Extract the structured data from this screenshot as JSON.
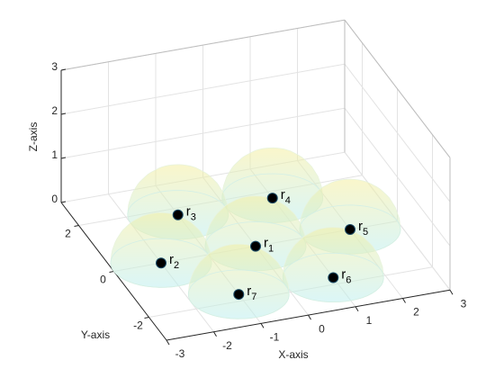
{
  "chart_data": {
    "type": "scatter3d",
    "xlabel": "X-axis",
    "ylabel": "Y-axis",
    "zlabel": "Z-axis",
    "xlim": [
      -3,
      3
    ],
    "ylim": [
      -3,
      3
    ],
    "zlim": [
      0,
      3
    ],
    "xticks": [
      -3,
      -2,
      -1,
      0,
      1,
      2,
      3
    ],
    "yticks": [
      -2,
      0,
      2
    ],
    "zticks": [
      0,
      1,
      2,
      3
    ],
    "grid": true,
    "x": [
      0,
      -2,
      -1,
      1,
      2,
      1,
      -1
    ],
    "y": [
      0,
      0,
      1.732,
      1.732,
      0,
      -1.732,
      -1.732
    ],
    "z": [
      0,
      0,
      0,
      0,
      0,
      0,
      0
    ],
    "point_labels": [
      {
        "text": "r",
        "sub": "1"
      },
      {
        "text": "r",
        "sub": "2"
      },
      {
        "text": "r",
        "sub": "3"
      },
      {
        "text": "r",
        "sub": "4"
      },
      {
        "text": "r",
        "sub": "5"
      },
      {
        "text": "r",
        "sub": "6"
      },
      {
        "text": "r",
        "sub": "7"
      }
    ],
    "radius": 1,
    "color": "#000000"
  }
}
